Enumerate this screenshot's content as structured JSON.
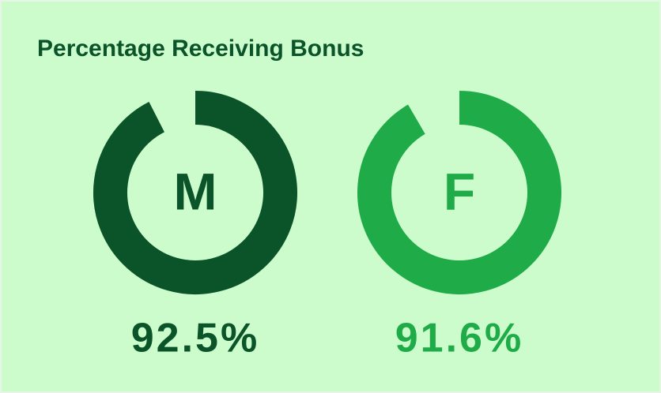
{
  "chart_data": {
    "type": "donut",
    "title": "Percentage Receiving Bonus",
    "categories": [
      "M",
      "F"
    ],
    "values": [
      92.5,
      91.6
    ],
    "value_labels": [
      "92.5%",
      "91.6%"
    ],
    "colors": [
      "#0b5329",
      "#1fac48"
    ],
    "ylim": [
      0,
      100
    ]
  }
}
